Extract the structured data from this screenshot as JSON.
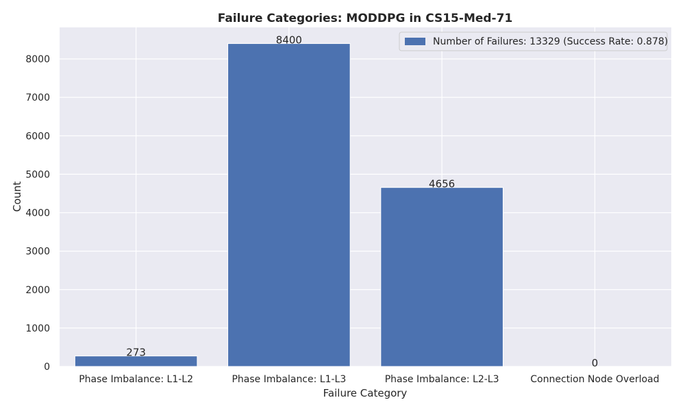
{
  "chart_data": {
    "type": "bar",
    "title": "Failure Categories: MODDPG in CS15-Med-71",
    "xlabel": "Failure Category",
    "ylabel": "Count",
    "categories": [
      "Phase Imbalance: L1-L2",
      "Phase Imbalance: L1-L3",
      "Phase Imbalance: L2-L3",
      "Connection Node Overload"
    ],
    "series": [
      {
        "name": "Number of Failures: 13329 (Success Rate: 0.878)",
        "values": [
          273,
          8400,
          4656,
          0
        ]
      }
    ],
    "data_labels": [
      "273",
      "8400",
      "4656",
      "0"
    ],
    "yticks": [
      0,
      1000,
      2000,
      3000,
      4000,
      5000,
      6000,
      7000,
      8000
    ],
    "ylim": [
      0,
      8820
    ],
    "grid": true,
    "legend_position": "top-right",
    "colors": {
      "bar": "#4c72b0",
      "background": "#eaeaf2",
      "grid": "#ffffff",
      "text": "#262626"
    }
  }
}
